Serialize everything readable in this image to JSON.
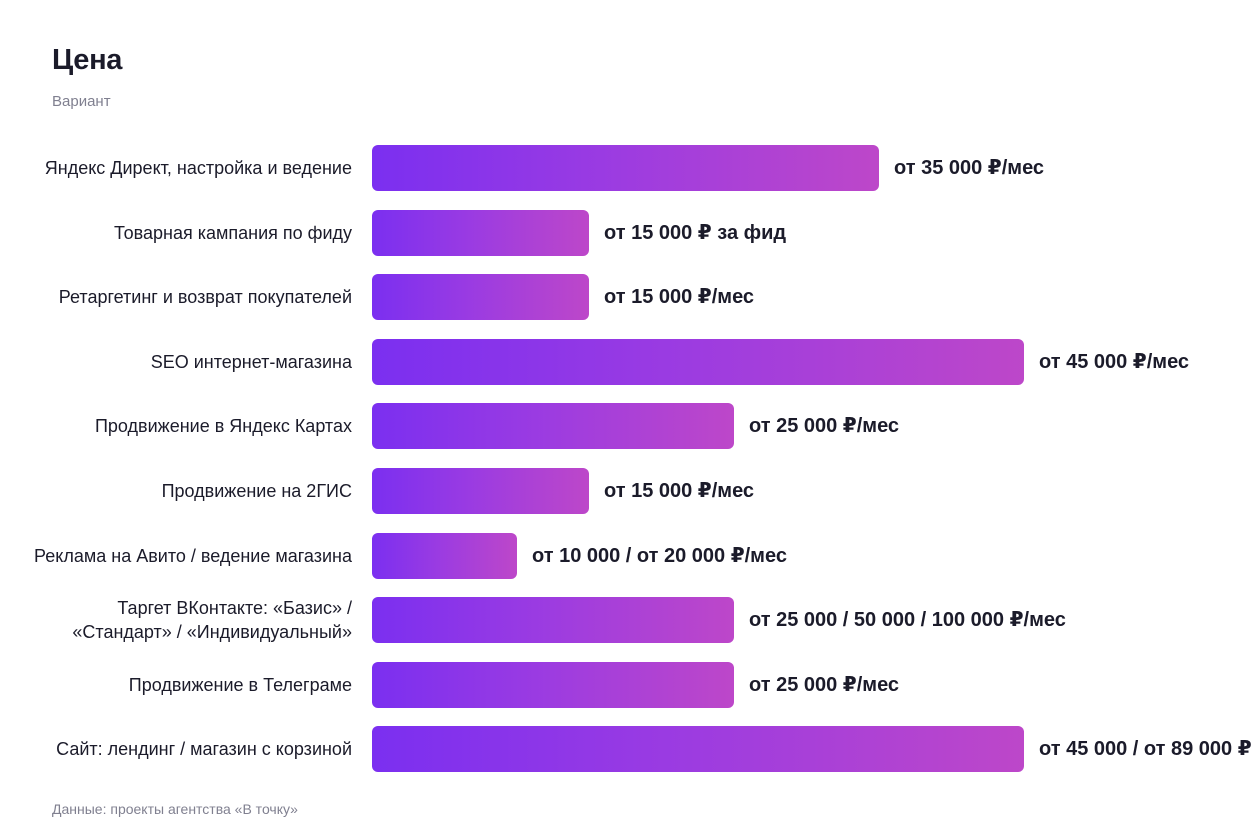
{
  "chart_data": {
    "type": "bar",
    "orientation": "horizontal",
    "title": "Цена",
    "subtitle": "Вариант",
    "categories": [
      "Яндекс Директ, настройка и ведение",
      "Товарная кампания по фиду",
      "Ретаргетинг и возврат покупателей",
      "SEO интернет-магазина",
      "Продвижение в Яндекс Картах",
      "Продвижение на 2ГИС",
      "Реклама на Авито / ведение магазина",
      "Таргет ВКонтакте: «Базис» / «Стандарт» / «Индивидуальный»",
      "Продвижение в Телеграме",
      "Сайт: лендинг / магазин с корзиной"
    ],
    "values": [
      35000,
      15000,
      15000,
      45000,
      25000,
      15000,
      10000,
      25000,
      25000,
      45000
    ],
    "value_labels": [
      "от 35 000 ₽/мес",
      "от 15 000 ₽ за фид",
      "от 15 000 ₽/мес",
      "от 45 000 ₽/мес",
      "от 25 000 ₽/мес",
      "от 15 000 ₽/мес",
      "от 10 000 / от 20 000 ₽/мес",
      "от 25 000 / 50 000 / 100 000 ₽/мес",
      "от 25 000 ₽/мес",
      "от 45 000 / от 89 000 ₽"
    ],
    "xlim": [
      0,
      45000
    ],
    "grid": false,
    "legend": "none",
    "colors": {
      "bar_start": "#7b2ff0",
      "bar_end": "#bd47c9"
    }
  },
  "footnote": "Данные: проекты агентства «В точку»"
}
